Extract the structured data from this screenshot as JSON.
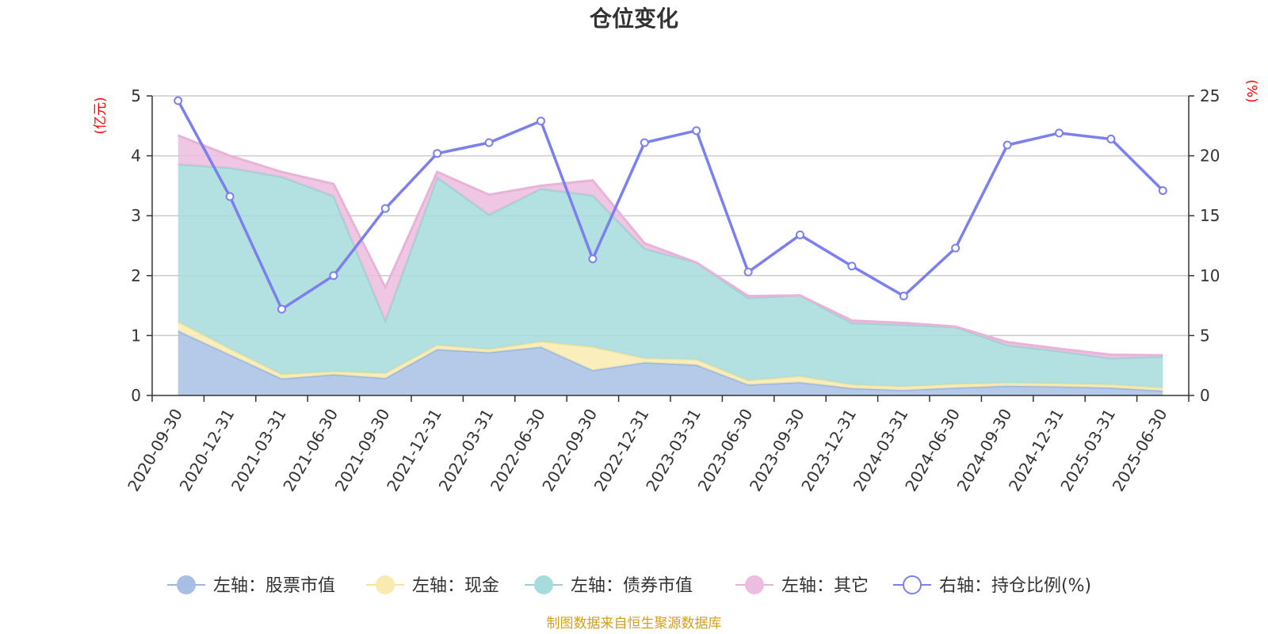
{
  "chart_data": {
    "type": "area",
    "title": "仓位变化",
    "left_axis_unit": "(亿元)",
    "right_axis_unit": "(%)",
    "ylim_left": [
      0,
      5
    ],
    "yticks_left": [
      0,
      1,
      2,
      3,
      4,
      5
    ],
    "ylim_right": [
      0,
      25
    ],
    "yticks_right": [
      0,
      5,
      10,
      15,
      20,
      25
    ],
    "grid": true,
    "legend_position": "bottom",
    "x": [
      "2020-09-30",
      "2020-12-31",
      "2021-03-31",
      "2021-06-30",
      "2021-09-30",
      "2021-12-31",
      "2022-03-31",
      "2022-06-30",
      "2022-09-30",
      "2022-12-31",
      "2023-03-31",
      "2023-06-30",
      "2023-09-30",
      "2023-12-31",
      "2024-03-31",
      "2024-06-30",
      "2024-09-30",
      "2024-12-31",
      "2025-03-31",
      "2025-06-30"
    ],
    "stacked_series": [
      {
        "name": "左轴：股票市值",
        "color": "#a8bfe4",
        "line_color": "#9cb7e0",
        "values": [
          1.08,
          0.68,
          0.28,
          0.35,
          0.29,
          0.77,
          0.72,
          0.81,
          0.42,
          0.55,
          0.51,
          0.18,
          0.22,
          0.12,
          0.09,
          0.13,
          0.16,
          0.15,
          0.13,
          0.08
        ]
      },
      {
        "name": "左轴：现金",
        "color": "#f9ebb0",
        "line_color": "#f7e39b",
        "values": [
          0.15,
          0.1,
          0.07,
          0.05,
          0.08,
          0.07,
          0.05,
          0.09,
          0.39,
          0.07,
          0.09,
          0.07,
          0.1,
          0.06,
          0.06,
          0.06,
          0.05,
          0.05,
          0.05,
          0.05
        ]
      },
      {
        "name": "左轴：债券市值",
        "color": "#a6dcdc",
        "line_color": "#9ad2d2",
        "values": [
          2.63,
          3.02,
          3.3,
          2.93,
          0.88,
          2.8,
          2.25,
          2.55,
          2.53,
          1.83,
          1.62,
          1.38,
          1.35,
          1.03,
          1.03,
          0.95,
          0.63,
          0.54,
          0.44,
          0.52
        ]
      },
      {
        "name": "左轴：其它",
        "color": "#ecbde0",
        "line_color": "#e8b3d8",
        "values": [
          0.48,
          0.2,
          0.08,
          0.2,
          0.55,
          0.09,
          0.33,
          0.05,
          0.25,
          0.09,
          0.0,
          0.03,
          0.0,
          0.04,
          0.03,
          0.01,
          0.05,
          0.04,
          0.06,
          0.02
        ]
      }
    ],
    "line_series": {
      "name": "右轴：持仓比例(%)",
      "color": "#7b7ff0",
      "values": [
        24.6,
        16.6,
        7.2,
        10.0,
        15.6,
        20.2,
        21.1,
        22.9,
        11.4,
        21.1,
        22.1,
        10.3,
        13.4,
        10.8,
        8.3,
        12.3,
        20.9,
        21.9,
        21.4,
        17.1
      ]
    }
  },
  "source_text": "制图数据来自恒生聚源数据库"
}
